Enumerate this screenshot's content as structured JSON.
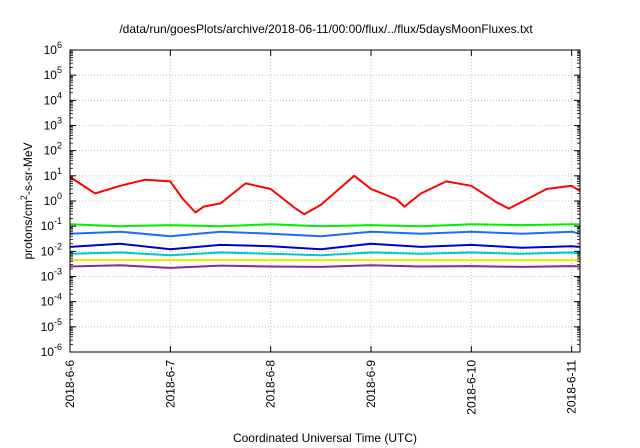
{
  "title": "/data/run/goesPlots/archive/2018-06-11/00:00/flux/../flux/5daysMoonFluxes.txt",
  "chart_data": {
    "type": "line",
    "title": "/data/run/goesPlots/archive/2018-06-11/00:00/flux/../flux/5daysMoonFluxes.txt",
    "xlabel": "Coordinated Universal Time (UTC)",
    "ylabel": "protons/cm²-s-sr-MeV",
    "ylabel_parts": [
      "protons/cm",
      "2",
      "-s-sr-MeV"
    ],
    "y_scale": "log",
    "ylim": [
      1e-06,
      1000000.0
    ],
    "y_ticks": [
      {
        "base": "10",
        "exp": "-6",
        "value": 1e-06
      },
      {
        "base": "10",
        "exp": "-5",
        "value": 1e-05
      },
      {
        "base": "10",
        "exp": "-4",
        "value": 0.0001
      },
      {
        "base": "10",
        "exp": "-3",
        "value": 0.001
      },
      {
        "base": "10",
        "exp": "-2",
        "value": 0.01
      },
      {
        "base": "10",
        "exp": "-1",
        "value": 0.1
      },
      {
        "base": "10",
        "exp": "0",
        "value": 1
      },
      {
        "base": "10",
        "exp": "1",
        "value": 10
      },
      {
        "base": "10",
        "exp": "2",
        "value": 100
      },
      {
        "base": "10",
        "exp": "3",
        "value": 1000
      },
      {
        "base": "10",
        "exp": "4",
        "value": 10000
      },
      {
        "base": "10",
        "exp": "5",
        "value": 100000
      },
      {
        "base": "10",
        "exp": "6",
        "value": 1000000
      }
    ],
    "xlim": [
      "2018-06-06 00:00",
      "2018-06-11 02:00"
    ],
    "x_ticks": [
      {
        "label": "2018-6-6",
        "date": "2018-06-06"
      },
      {
        "label": "2018-6-7",
        "date": "2018-06-07"
      },
      {
        "label": "2018-6-8",
        "date": "2018-06-08"
      },
      {
        "label": "2018-6-9",
        "date": "2018-06-09"
      },
      {
        "label": "2018-6-10",
        "date": "2018-06-10"
      },
      {
        "label": "2018-6-11",
        "date": "2018-06-11"
      }
    ],
    "grid": true,
    "series": [
      {
        "color": "#ff0000",
        "x": [
          "2018-06-06 00:00",
          "2018-06-06 06:00",
          "2018-06-06 12:00",
          "2018-06-06 18:00",
          "2018-06-07 00:00",
          "2018-06-07 03:00",
          "2018-06-07 06:00",
          "2018-06-07 08:00",
          "2018-06-07 12:00",
          "2018-06-07 18:00",
          "2018-06-08 00:00",
          "2018-06-08 06:00",
          "2018-06-08 08:00",
          "2018-06-08 12:00",
          "2018-06-08 20:00",
          "2018-06-09 00:00",
          "2018-06-09 06:00",
          "2018-06-09 08:00",
          "2018-06-09 12:00",
          "2018-06-09 18:00",
          "2018-06-10 00:00",
          "2018-06-10 06:00",
          "2018-06-10 09:00",
          "2018-06-10 18:00",
          "2018-06-11 00:00",
          "2018-06-11 02:00"
        ],
        "values": [
          9,
          2,
          4,
          7,
          6,
          1.2,
          0.35,
          0.6,
          0.8,
          5,
          3,
          0.5,
          0.3,
          0.7,
          10,
          3,
          1.2,
          0.6,
          2,
          6,
          4,
          0.9,
          0.5,
          3,
          4,
          2.5
        ]
      },
      {
        "color": "#00ee00",
        "x": [
          "2018-06-06 00:00",
          "2018-06-06 12:00",
          "2018-06-07 00:00",
          "2018-06-07 12:00",
          "2018-06-08 00:00",
          "2018-06-08 12:00",
          "2018-06-09 00:00",
          "2018-06-09 12:00",
          "2018-06-10 00:00",
          "2018-06-10 12:00",
          "2018-06-11 00:00",
          "2018-06-11 02:00"
        ],
        "values": [
          0.12,
          0.1,
          0.11,
          0.1,
          0.12,
          0.1,
          0.11,
          0.1,
          0.12,
          0.11,
          0.12,
          0.12
        ]
      },
      {
        "color": "#1e6bff",
        "x": [
          "2018-06-06 00:00",
          "2018-06-06 12:00",
          "2018-06-07 00:00",
          "2018-06-07 12:00",
          "2018-06-08 00:00",
          "2018-06-08 12:00",
          "2018-06-09 00:00",
          "2018-06-09 12:00",
          "2018-06-10 00:00",
          "2018-06-10 12:00",
          "2018-06-11 00:00",
          "2018-06-11 02:00"
        ],
        "values": [
          0.05,
          0.06,
          0.04,
          0.06,
          0.05,
          0.04,
          0.06,
          0.05,
          0.06,
          0.05,
          0.06,
          0.05
        ]
      },
      {
        "color": "#0000cc",
        "x": [
          "2018-06-06 00:00",
          "2018-06-06 12:00",
          "2018-06-07 00:00",
          "2018-06-07 12:00",
          "2018-06-08 00:00",
          "2018-06-08 12:00",
          "2018-06-09 00:00",
          "2018-06-09 12:00",
          "2018-06-10 00:00",
          "2018-06-10 12:00",
          "2018-06-11 00:00",
          "2018-06-11 02:00"
        ],
        "values": [
          0.015,
          0.02,
          0.012,
          0.018,
          0.016,
          0.012,
          0.02,
          0.015,
          0.018,
          0.014,
          0.016,
          0.015
        ]
      },
      {
        "color": "#00c8c8",
        "x": [
          "2018-06-06 00:00",
          "2018-06-06 12:00",
          "2018-06-07 00:00",
          "2018-06-07 12:00",
          "2018-06-08 00:00",
          "2018-06-08 12:00",
          "2018-06-09 00:00",
          "2018-06-09 12:00",
          "2018-06-10 00:00",
          "2018-06-10 12:00",
          "2018-06-11 00:00",
          "2018-06-11 02:00"
        ],
        "values": [
          0.008,
          0.009,
          0.007,
          0.009,
          0.008,
          0.007,
          0.009,
          0.008,
          0.009,
          0.008,
          0.009,
          0.008
        ]
      },
      {
        "color": "#e8e800",
        "x": [
          "2018-06-06 00:00",
          "2018-06-07 00:00",
          "2018-06-08 00:00",
          "2018-06-09 00:00",
          "2018-06-10 00:00",
          "2018-06-11 00:00",
          "2018-06-11 02:00"
        ],
        "values": [
          0.0045,
          0.0045,
          0.0045,
          0.0045,
          0.0045,
          0.0045,
          0.0045
        ]
      },
      {
        "color": "#8b2a8b",
        "x": [
          "2018-06-06 00:00",
          "2018-06-06 12:00",
          "2018-06-07 00:00",
          "2018-06-07 12:00",
          "2018-06-08 00:00",
          "2018-06-08 12:00",
          "2018-06-09 00:00",
          "2018-06-09 12:00",
          "2018-06-10 00:00",
          "2018-06-10 12:00",
          "2018-06-11 00:00",
          "2018-06-11 02:00"
        ],
        "values": [
          0.0025,
          0.0028,
          0.0022,
          0.0027,
          0.0025,
          0.0024,
          0.0028,
          0.0025,
          0.0026,
          0.0024,
          0.0026,
          0.0025
        ]
      }
    ]
  }
}
